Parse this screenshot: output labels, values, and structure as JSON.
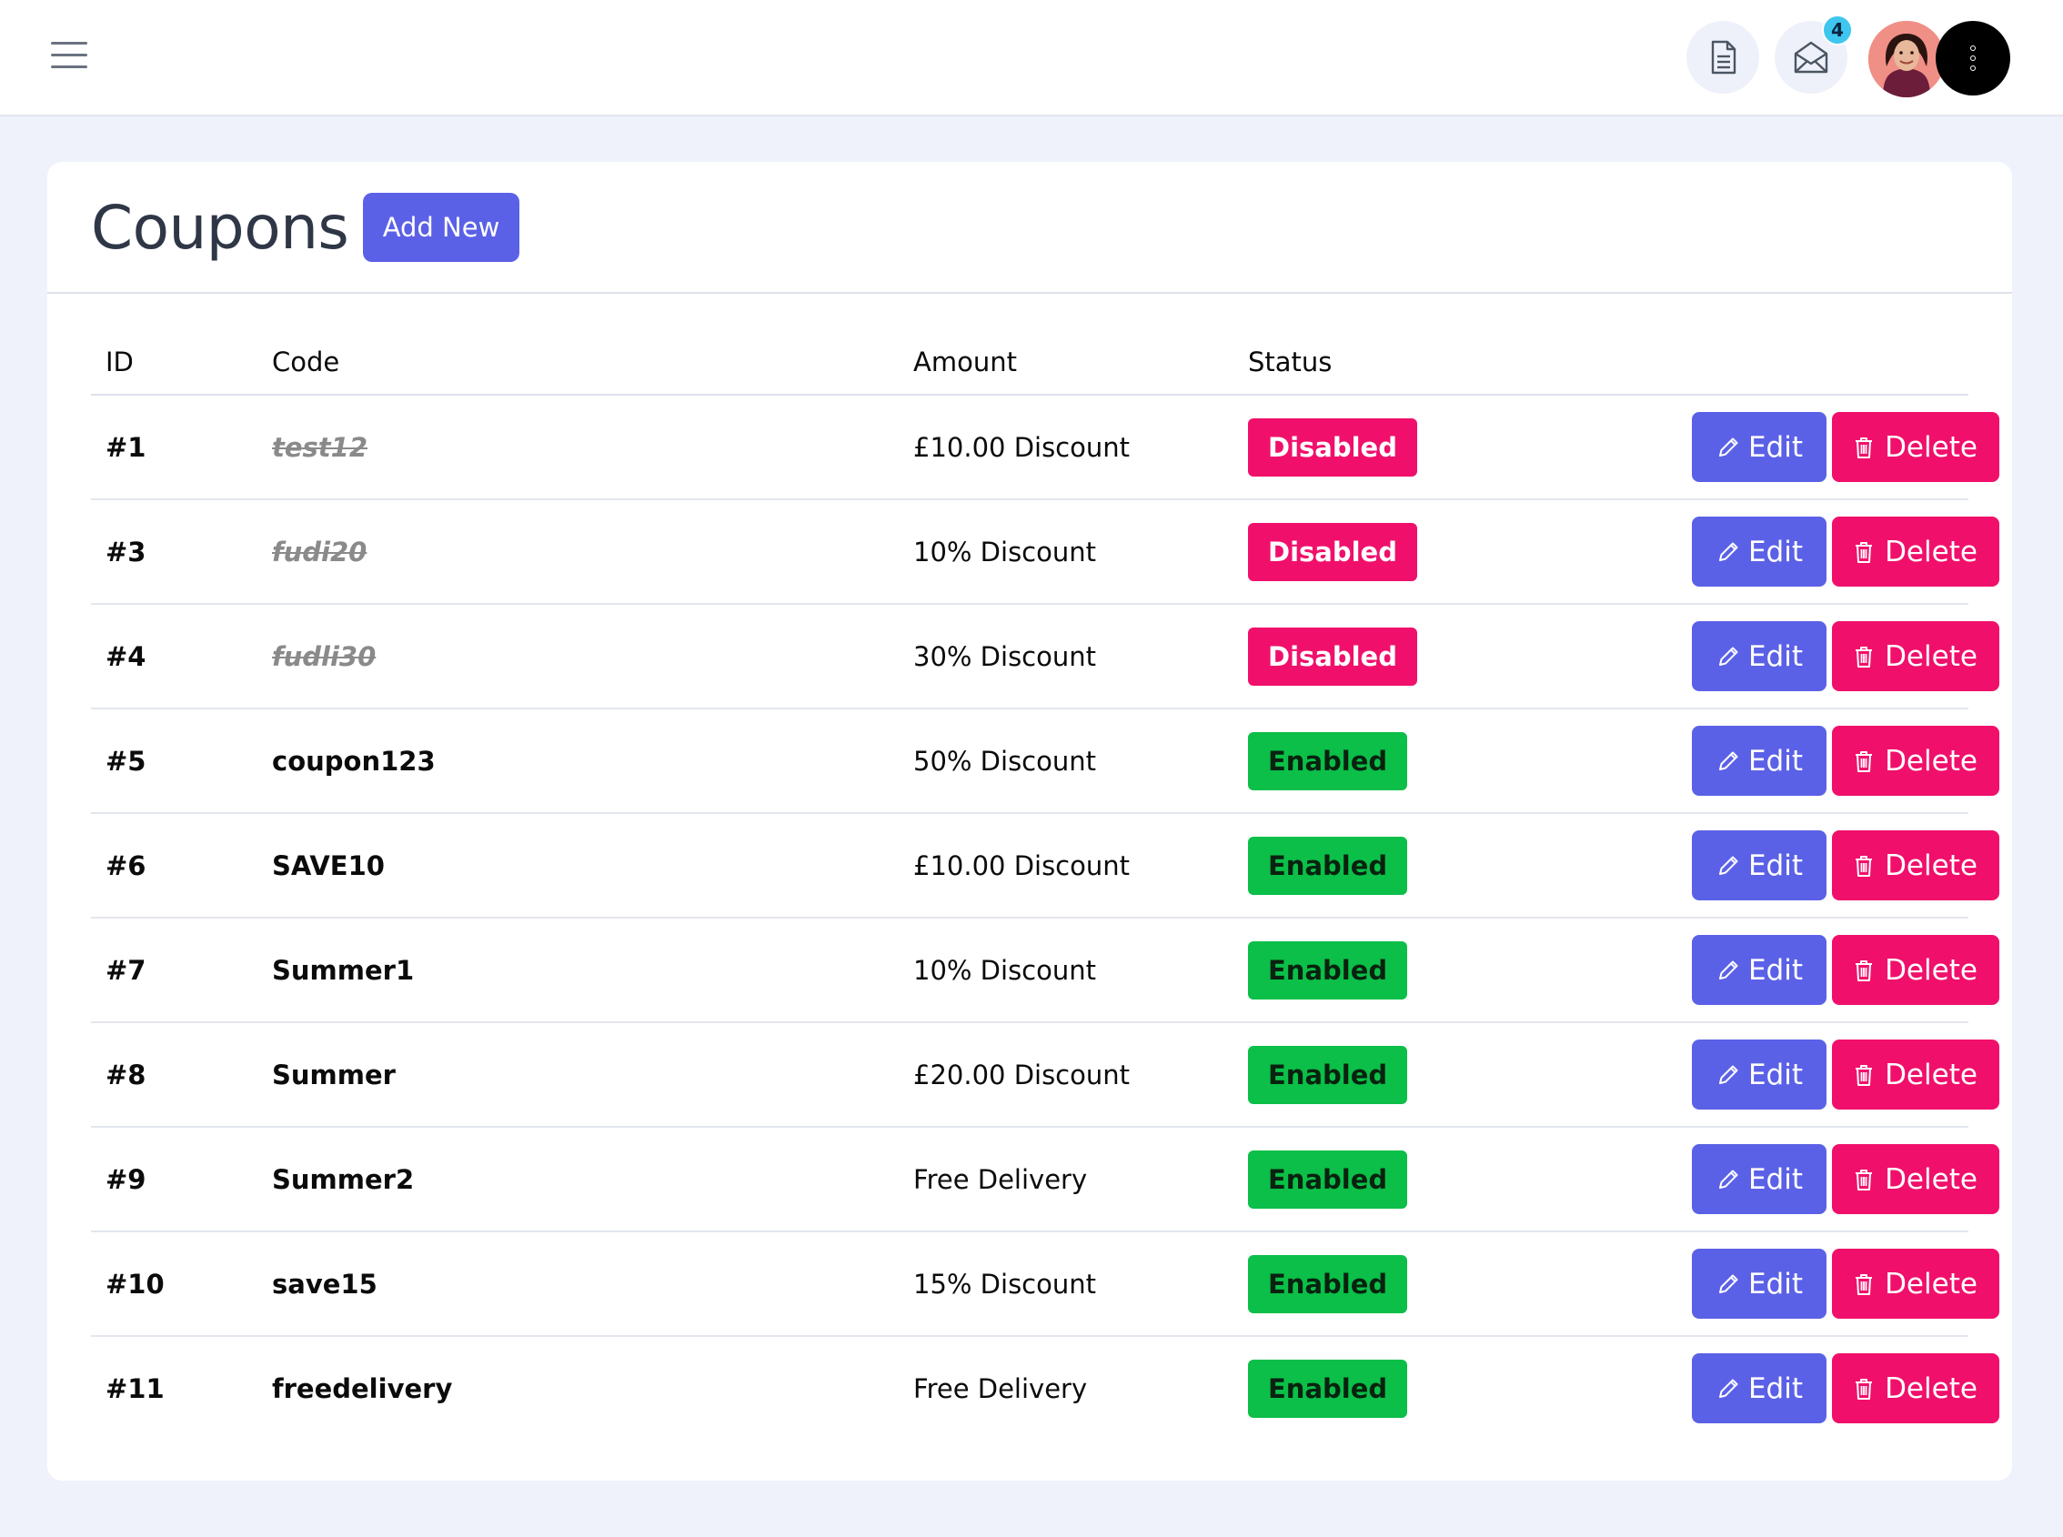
{
  "header": {
    "menu_icon": "hamburger-icon",
    "document_icon": "document-icon",
    "mail_icon": "envelope-open-icon",
    "notification_count": "4",
    "more_icon": "more-vertical-icon"
  },
  "page": {
    "title": "Coupons",
    "add_new_label": "Add New"
  },
  "table": {
    "columns": {
      "id": "ID",
      "code": "Code",
      "amount": "Amount",
      "status": "Status"
    },
    "edit_label": "Edit",
    "delete_label": "Delete",
    "rows": [
      {
        "id": "#1",
        "code": "test12",
        "amount": "£10.00 Discount",
        "status": "Disabled"
      },
      {
        "id": "#3",
        "code": "fudi20",
        "amount": "10% Discount",
        "status": "Disabled"
      },
      {
        "id": "#4",
        "code": "fudli30",
        "amount": "30% Discount",
        "status": "Disabled"
      },
      {
        "id": "#5",
        "code": "coupon123",
        "amount": "50% Discount",
        "status": "Enabled"
      },
      {
        "id": "#6",
        "code": "SAVE10",
        "amount": "£10.00 Discount",
        "status": "Enabled"
      },
      {
        "id": "#7",
        "code": "Summer1",
        "amount": "10% Discount",
        "status": "Enabled"
      },
      {
        "id": "#8",
        "code": "Summer",
        "amount": "£20.00 Discount",
        "status": "Enabled"
      },
      {
        "id": "#9",
        "code": "Summer2",
        "amount": "Free Delivery",
        "status": "Enabled"
      },
      {
        "id": "#10",
        "code": "save15",
        "amount": "15% Discount",
        "status": "Enabled"
      },
      {
        "id": "#11",
        "code": "freedelivery",
        "amount": "Free Delivery",
        "status": "Enabled"
      }
    ]
  },
  "colors": {
    "primary": "#5b61e6",
    "danger": "#f0106b",
    "success": "#0bbf48",
    "badge_notification": "#3ec6ee"
  }
}
